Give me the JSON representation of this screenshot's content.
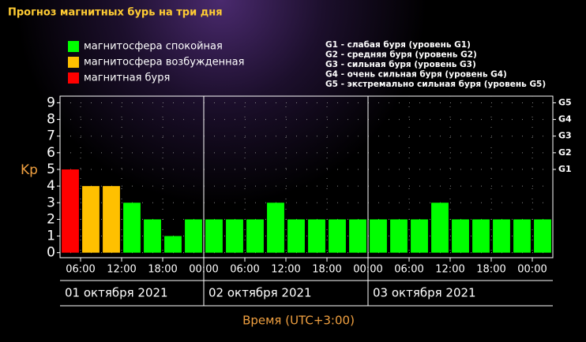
{
  "chart_data": {
    "type": "bar",
    "title": "Прогноз магнитных бурь на три дня",
    "legend": [
      {
        "name": "магнитосфера спокойная",
        "color": "#00ff00"
      },
      {
        "name": "магнитосфера возбужденная",
        "color": "#ffc000"
      },
      {
        "name": "магнитная буря",
        "color": "#ff0000"
      }
    ],
    "storm_scale": [
      "G1 - слабая буря (уровень G1)",
      "G2 - средняя буря (уровень G2)",
      "G3 - сильная буря (уровень G3)",
      "G4 - очень сильная буря (уровень G4)",
      "G5 - экстремально сильная буря (уровень G5)"
    ],
    "y_label": "Kp",
    "x_label": "Время (UTC+3:00)",
    "x": [
      4.5,
      7.5,
      10.5,
      13.5,
      16.5,
      19.5,
      22.5,
      25.5,
      28.5,
      31.5,
      34.5,
      37.5,
      40.5,
      43.5,
      46.5,
      49.5,
      52.5,
      55.5,
      58.5,
      61.5,
      64.5,
      67.5,
      70.5,
      73.5
    ],
    "values": [
      5,
      4,
      4,
      3,
      2,
      1,
      2,
      2,
      2,
      2,
      3,
      2,
      2,
      2,
      2,
      2,
      2,
      2,
      3,
      2,
      2,
      2,
      2,
      2
    ],
    "colors": [
      "#ff0000",
      "#ffc000",
      "#ffc000",
      "#00ff00",
      "#00ff00",
      "#00ff00",
      "#00ff00",
      "#00ff00",
      "#00ff00",
      "#00ff00",
      "#00ff00",
      "#00ff00",
      "#00ff00",
      "#00ff00",
      "#00ff00",
      "#00ff00",
      "#00ff00",
      "#00ff00",
      "#00ff00",
      "#00ff00",
      "#00ff00",
      "#00ff00",
      "#00ff00",
      "#00ff00"
    ],
    "xlim": [
      3,
      75
    ],
    "xticks": [
      {
        "value": 6,
        "label": "06:00"
      },
      {
        "value": 12,
        "label": "12:00"
      },
      {
        "value": 18,
        "label": "18:00"
      },
      {
        "value": 24,
        "label": "00:00"
      },
      {
        "value": 30,
        "label": "06:00"
      },
      {
        "value": 36,
        "label": "12:00"
      },
      {
        "value": 42,
        "label": "18:00"
      },
      {
        "value": 48,
        "label": "00:00"
      },
      {
        "value": 54,
        "label": "06:00"
      },
      {
        "value": 60,
        "label": "12:00"
      },
      {
        "value": 66,
        "label": "18:00"
      },
      {
        "value": 72,
        "label": "00:00"
      }
    ],
    "days": [
      {
        "label": "01 октября 2021",
        "start": 0
      },
      {
        "label": "02 октября 2021",
        "start": 24
      },
      {
        "label": "03 октября 2021",
        "start": 48
      }
    ],
    "ylim": [
      -0.3,
      9.4
    ],
    "yticks": [
      0,
      1,
      2,
      3,
      4,
      5,
      6,
      7,
      8,
      9
    ],
    "y2lim": [
      -0.3,
      9.4
    ],
    "y2ticks": [
      {
        "value": 5,
        "label": "G1"
      },
      {
        "value": 6,
        "label": "G2"
      },
      {
        "value": 7,
        "label": "G3"
      },
      {
        "value": 8,
        "label": "G4"
      },
      {
        "value": 9,
        "label": "G5"
      }
    ],
    "grid": true
  }
}
